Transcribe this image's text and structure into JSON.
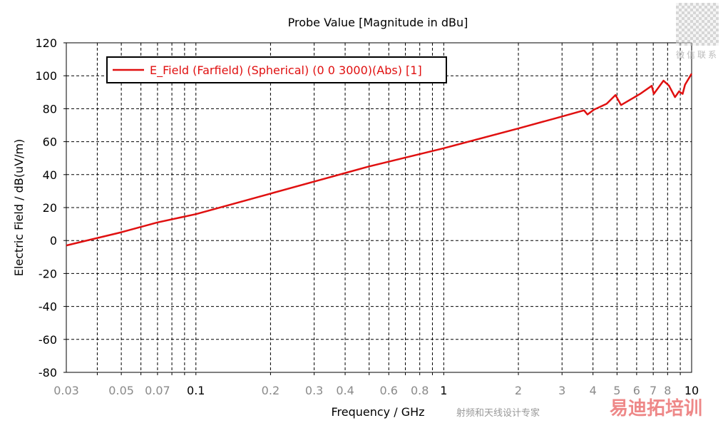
{
  "chart_data": {
    "type": "line",
    "title": "Probe Value [Magnitude in dBu]",
    "xlabel": "Frequency / GHz",
    "ylabel": "Electric Field / dB(uV/m)",
    "xscale": "log",
    "xlim": [
      0.03,
      10
    ],
    "ylim": [
      -80,
      120
    ],
    "yticks": [
      -80,
      -60,
      -40,
      -20,
      0,
      20,
      40,
      60,
      80,
      100,
      120
    ],
    "xticks": [
      0.03,
      0.05,
      0.07,
      0.1,
      0.2,
      0.3,
      0.4,
      0.6,
      0.8,
      1,
      2,
      3,
      4,
      5,
      6,
      7,
      8,
      10
    ],
    "xtick_labels": [
      "0.03",
      "0.05",
      "0.07",
      "0.1",
      "0.2",
      "0.3",
      "0.4",
      "0.6",
      "0.8",
      "1",
      "2",
      "3",
      "4",
      "5",
      "6",
      "7",
      "8",
      "10"
    ],
    "major_xticks": [
      "0.1",
      "1",
      "10"
    ],
    "grid": true,
    "legend_position": "top-left",
    "series": [
      {
        "name": "E_Field (Farfield) (Spherical) (0 0 3000)(Abs) [1]",
        "color": "#e01010",
        "x": [
          0.03,
          0.05,
          0.07,
          0.1,
          0.2,
          0.5,
          1,
          2,
          2.86,
          3.68,
          3.8,
          4.04,
          4.54,
          4.93,
          5.19,
          6.2,
          6.9,
          7.04,
          7.7,
          8.1,
          8.57,
          8.9,
          9.2,
          9.4,
          10
        ],
        "y": [
          -3,
          5,
          11,
          16,
          28.5,
          45,
          56,
          68,
          74.4,
          79,
          76.5,
          79.5,
          83,
          88.3,
          82.2,
          89,
          93.9,
          89,
          97,
          94,
          87,
          90.5,
          89,
          94.5,
          101.3
        ]
      }
    ]
  },
  "watermark": {
    "qr_caption": "微信联系",
    "brand": "易迪拓培训",
    "tagline": "射频和天线设计专家"
  }
}
